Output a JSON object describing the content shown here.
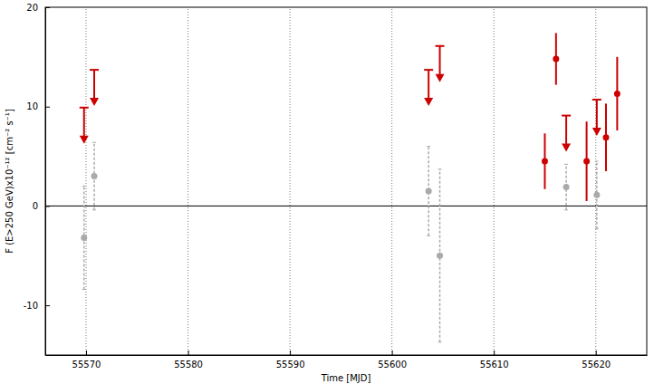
{
  "chart_data": {
    "type": "scatter",
    "x_label": "Time [MJD]",
    "y_label": "F (E>250 GeV)x10⁻¹² [cm⁻² s⁻¹]",
    "xlim": [
      55566,
      55625
    ],
    "ylim": [
      -15,
      20
    ],
    "xticks": [
      55570,
      55580,
      55590,
      55600,
      55610,
      55620
    ],
    "yticks": [
      -10,
      0,
      10,
      20
    ],
    "grid": "x",
    "hlines": [
      0
    ],
    "series": [
      {
        "type": "scatter",
        "marker": "arrow",
        "line_style": "solid",
        "color": "#cc0000",
        "x": [
          55569.8,
          55570.8,
          55603.6,
          55604.7,
          55617.1,
          55620.1
        ],
        "values": [
          9.9,
          13.7,
          13.7,
          16.1,
          9.1,
          10.7
        ]
      },
      {
        "type": "scatter",
        "marker": "circle",
        "line_style": "solid",
        "color": "#cc0000",
        "x": [
          55615.0,
          55616.1,
          55619.1,
          55621.0,
          55622.1
        ],
        "values": [
          4.5,
          14.8,
          4.5,
          6.9,
          11.3
        ],
        "errors": [
          2.8,
          2.6,
          4.0,
          3.4,
          3.7
        ]
      },
      {
        "type": "scatter",
        "marker": "circle",
        "line_style": "dashed",
        "color": "#aaaaaa",
        "x": [
          55569.8,
          55570.8,
          55603.6,
          55604.7,
          55617.1,
          55620.1
        ],
        "values": [
          -3.2,
          3.0,
          1.5,
          -5.0,
          1.9,
          1.1
        ],
        "errors": [
          5.2,
          3.4,
          4.5,
          8.7,
          2.3,
          3.4
        ]
      }
    ]
  }
}
